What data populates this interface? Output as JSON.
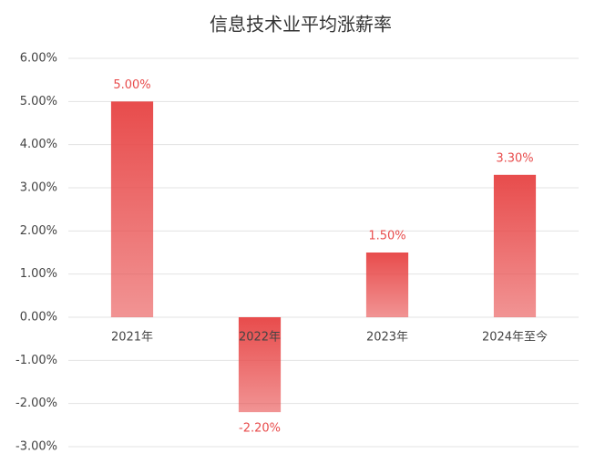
{
  "chart_data": {
    "type": "bar",
    "title": "信息技术业平均涨薪率",
    "categories": [
      "2021年",
      "2022年",
      "2023年",
      "2024年至今"
    ],
    "values": [
      5,
      -2.2,
      1.5,
      3.3
    ],
    "value_labels": [
      "5.00%",
      "-2.20%",
      "1.50%",
      "3.30%"
    ],
    "color": "#e84c4c",
    "ylim": [
      -3,
      6
    ],
    "yticks": [
      {
        "value": -3,
        "label": "-3.00%"
      },
      {
        "value": -2,
        "label": "-2.00%"
      },
      {
        "value": -1,
        "label": "-1.00%"
      },
      {
        "value": 0,
        "label": "0.00%"
      },
      {
        "value": 1,
        "label": "1.00%"
      },
      {
        "value": 2,
        "label": "2.00%"
      },
      {
        "value": 3,
        "label": "3.00%"
      },
      {
        "value": 4,
        "label": "4.00%"
      },
      {
        "value": 5,
        "label": "5.00%"
      },
      {
        "value": 6,
        "label": "6.00%"
      }
    ],
    "grid": true
  }
}
